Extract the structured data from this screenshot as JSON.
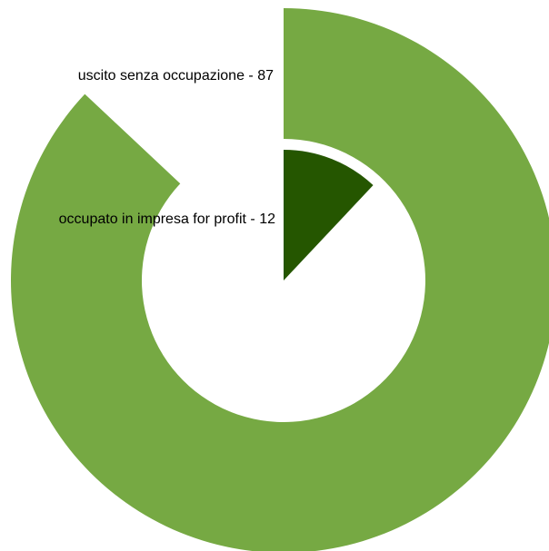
{
  "chart_data": {
    "type": "pie",
    "title": "",
    "series": [
      {
        "values": [
          87
        ],
        "labels": [
          "uscito senza occupazione - 87"
        ],
        "color": "#76a943",
        "ring": "outer"
      },
      {
        "values": [
          12
        ],
        "labels": [
          "occupato in impresa for profit - 12"
        ],
        "color": "#255600",
        "ring": "inner"
      }
    ],
    "legend": "none"
  }
}
